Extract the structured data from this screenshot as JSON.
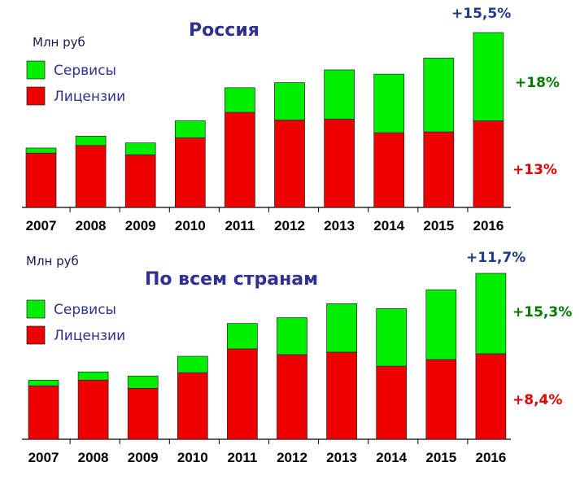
{
  "colors": {
    "services": "#00ee00",
    "licenses": "#ee0000",
    "title": "#2e3192",
    "annotation_total": "#1f3a8a",
    "annotation_services": "#007a00",
    "annotation_licenses": "#e00000"
  },
  "chart_data": [
    {
      "type": "bar",
      "stacked": true,
      "title": "Россия",
      "unit_label": "Млн руб",
      "legend": [
        {
          "name": "Сервисы",
          "color_key": "services"
        },
        {
          "name": "Лицензии",
          "color_key": "licenses"
        }
      ],
      "legend_position": "top-left",
      "categories": [
        "2007",
        "2008",
        "2009",
        "2010",
        "2011",
        "2012",
        "2013",
        "2014",
        "2015",
        "2016"
      ],
      "series": [
        {
          "name": "Лицензии",
          "values": [
            64,
            73,
            62,
            82,
            112,
            103,
            104,
            88,
            89,
            102
          ]
        },
        {
          "name": "Сервисы",
          "values": [
            6,
            11,
            14,
            20,
            29,
            44,
            58,
            69,
            87,
            104
          ]
        }
      ],
      "ylim": [
        0,
        206
      ],
      "grid": false,
      "annotations": {
        "total": "+15,5%",
        "services": "+18%",
        "licenses": "+13%"
      }
    },
    {
      "type": "bar",
      "stacked": true,
      "title": "По всем странам",
      "unit_label": "Млн руб",
      "legend": [
        {
          "name": "Сервисы",
          "color_key": "services"
        },
        {
          "name": "Лицензии",
          "color_key": "licenses"
        }
      ],
      "legend_position": "top-left",
      "categories": [
        "2007",
        "2008",
        "2009",
        "2010",
        "2011",
        "2012",
        "2013",
        "2014",
        "2015",
        "2016"
      ],
      "series": [
        {
          "name": "Лицензии",
          "values": [
            65,
            72,
            62,
            81,
            110,
            103,
            106,
            89,
            97,
            104
          ]
        },
        {
          "name": "Сервисы",
          "values": [
            7,
            10,
            15,
            20,
            31,
            45,
            59,
            70,
            85,
            98
          ]
        }
      ],
      "ylim": [
        0,
        202
      ],
      "grid": false,
      "annotations": {
        "total": "+11,7%",
        "services": "+15,3%",
        "licenses": "+8,4%"
      }
    }
  ]
}
